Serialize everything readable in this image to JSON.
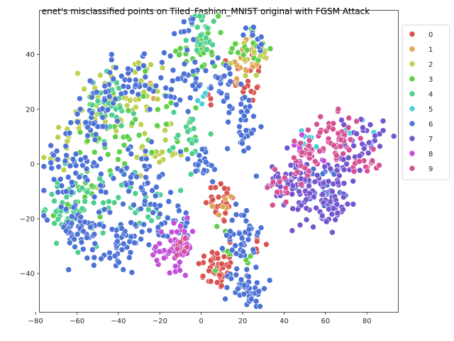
{
  "chart_data": {
    "type": "scatter",
    "title": "enet's misclassified points on Tiled_Fashion_MNIST original with FGSM Attack",
    "xlabel": "",
    "ylabel": "",
    "xlim": [
      -78,
      95
    ],
    "ylim": [
      -54,
      56
    ],
    "xticks": [
      -80,
      -60,
      -40,
      -20,
      0,
      20,
      40,
      60,
      80
    ],
    "yticks": [
      -40,
      -20,
      0,
      20,
      40
    ],
    "grid": false,
    "legend_position": "outside-right",
    "series": [
      {
        "name": "0",
        "color": "#d9534f",
        "clusters": [
          {
            "cx": 8,
            "cy": -38,
            "sx": 5,
            "sy": 4,
            "n": 45
          },
          {
            "cx": 10,
            "cy": -14,
            "sx": 4,
            "sy": 4,
            "n": 25
          },
          {
            "cx": 22,
            "cy": 32,
            "sx": 4,
            "sy": 5,
            "n": 20
          },
          {
            "cx": 26,
            "cy": -30,
            "sx": 3,
            "sy": 3,
            "n": 8
          },
          {
            "cx": 4,
            "cy": 24,
            "sx": 2,
            "sy": 2,
            "n": 4
          }
        ]
      },
      {
        "name": "1",
        "color": "#e0a550",
        "clusters": [
          {
            "cx": 22,
            "cy": 38,
            "sx": 4,
            "sy": 5,
            "n": 25
          },
          {
            "cx": 10,
            "cy": -16,
            "sx": 3,
            "sy": 3,
            "n": 6
          },
          {
            "cx": -25,
            "cy": 28,
            "sx": 4,
            "sy": 3,
            "n": 5
          }
        ]
      },
      {
        "name": "2",
        "color": "#bcd150",
        "clusters": [
          {
            "cx": -35,
            "cy": 25,
            "sx": 10,
            "sy": 8,
            "n": 55
          },
          {
            "cx": -60,
            "cy": 12,
            "sx": 6,
            "sy": 5,
            "n": 20
          },
          {
            "cx": -20,
            "cy": 5,
            "sx": 6,
            "sy": 4,
            "n": 20
          },
          {
            "cx": 24,
            "cy": 40,
            "sx": 4,
            "sy": 4,
            "n": 15
          },
          {
            "cx": -70,
            "cy": 0,
            "sx": 3,
            "sy": 2,
            "n": 6
          }
        ]
      },
      {
        "name": "3",
        "color": "#5fcf4a",
        "clusters": [
          {
            "cx": 0,
            "cy": 42,
            "sx": 6,
            "sy": 6,
            "n": 30
          },
          {
            "cx": 25,
            "cy": 42,
            "sx": 4,
            "sy": 4,
            "n": 15
          },
          {
            "cx": -45,
            "cy": 10,
            "sx": 10,
            "sy": 8,
            "n": 30
          },
          {
            "cx": -15,
            "cy": 20,
            "sx": 8,
            "sy": 8,
            "n": 20
          },
          {
            "cx": 15,
            "cy": -30,
            "sx": 5,
            "sy": 5,
            "n": 15
          },
          {
            "cx": -60,
            "cy": -15,
            "sx": 6,
            "sy": 5,
            "n": 15
          }
        ]
      },
      {
        "name": "4",
        "color": "#4ccf8f",
        "clusters": [
          {
            "cx": -65,
            "cy": -15,
            "sx": 6,
            "sy": 6,
            "n": 45
          },
          {
            "cx": -45,
            "cy": -15,
            "sx": 6,
            "sy": 6,
            "n": 25
          },
          {
            "cx": 2,
            "cy": 48,
            "sx": 4,
            "sy": 4,
            "n": 25
          },
          {
            "cx": -45,
            "cy": 20,
            "sx": 7,
            "sy": 7,
            "n": 30
          },
          {
            "cx": -5,
            "cy": 10,
            "sx": 5,
            "sy": 5,
            "n": 20
          },
          {
            "cx": -25,
            "cy": -15,
            "sx": 5,
            "sy": 4,
            "n": 20
          }
        ]
      },
      {
        "name": "5",
        "color": "#4dd0d8",
        "clusters": [
          {
            "cx": 50,
            "cy": 8,
            "sx": 3,
            "sy": 2,
            "n": 8
          },
          {
            "cx": 75,
            "cy": 10,
            "sx": 4,
            "sy": 3,
            "n": 6
          },
          {
            "cx": 2,
            "cy": 26,
            "sx": 3,
            "sy": 3,
            "n": 5
          }
        ]
      },
      {
        "name": "6",
        "color": "#4c72d6",
        "clusters": [
          {
            "cx": -60,
            "cy": 0,
            "sx": 8,
            "sy": 10,
            "n": 70
          },
          {
            "cx": -40,
            "cy": -30,
            "sx": 6,
            "sy": 5,
            "n": 50
          },
          {
            "cx": -60,
            "cy": -25,
            "sx": 6,
            "sy": 4,
            "n": 40
          },
          {
            "cx": -30,
            "cy": -5,
            "sx": 8,
            "sy": 6,
            "n": 45
          },
          {
            "cx": -35,
            "cy": 28,
            "sx": 8,
            "sy": 5,
            "n": 40
          },
          {
            "cx": -10,
            "cy": 30,
            "sx": 7,
            "sy": 6,
            "n": 30
          },
          {
            "cx": 22,
            "cy": -45,
            "sx": 5,
            "sy": 4,
            "n": 45
          },
          {
            "cx": 20,
            "cy": -25,
            "sx": 4,
            "sy": 6,
            "n": 40
          },
          {
            "cx": 20,
            "cy": 15,
            "sx": 4,
            "sy": 6,
            "n": 35
          },
          {
            "cx": 10,
            "cy": 30,
            "sx": 4,
            "sy": 5,
            "n": 25
          },
          {
            "cx": -15,
            "cy": -22,
            "sx": 6,
            "sy": 5,
            "n": 35
          },
          {
            "cx": 0,
            "cy": 0,
            "sx": 5,
            "sy": 4,
            "n": 20
          },
          {
            "cx": -50,
            "cy": 20,
            "sx": 6,
            "sy": 5,
            "n": 25
          },
          {
            "cx": 60,
            "cy": -8,
            "sx": 6,
            "sy": 4,
            "n": 25
          },
          {
            "cx": 25,
            "cy": 45,
            "sx": 3,
            "sy": 3,
            "n": 10
          },
          {
            "cx": -5,
            "cy": 48,
            "sx": 3,
            "sy": 3,
            "n": 10
          }
        ]
      },
      {
        "name": "7",
        "color": "#7455cf",
        "clusters": [
          {
            "cx": 62,
            "cy": -8,
            "sx": 7,
            "sy": 6,
            "n": 70
          },
          {
            "cx": 45,
            "cy": -5,
            "sx": 6,
            "sy": 5,
            "n": 40
          },
          {
            "cx": 78,
            "cy": 8,
            "sx": 5,
            "sy": 5,
            "n": 35
          },
          {
            "cx": 60,
            "cy": -18,
            "sx": 5,
            "sy": 3,
            "n": 20
          },
          {
            "cx": 40,
            "cy": -8,
            "sx": 4,
            "sy": 3,
            "n": 15
          }
        ]
      },
      {
        "name": "8",
        "color": "#c44dd9",
        "clusters": [
          {
            "cx": -10,
            "cy": -30,
            "sx": 3,
            "sy": 4,
            "n": 40
          },
          {
            "cx": -20,
            "cy": -32,
            "sx": 3,
            "sy": 3,
            "n": 15
          },
          {
            "cx": 50,
            "cy": 5,
            "sx": 4,
            "sy": 3,
            "n": 10
          }
        ]
      },
      {
        "name": "9",
        "color": "#d65195",
        "clusters": [
          {
            "cx": 65,
            "cy": 10,
            "sx": 6,
            "sy": 4,
            "n": 45
          },
          {
            "cx": 50,
            "cy": 2,
            "sx": 4,
            "sy": 4,
            "n": 25
          },
          {
            "cx": 80,
            "cy": 0,
            "sx": 4,
            "sy": 3,
            "n": 15
          },
          {
            "cx": 40,
            "cy": -8,
            "sx": 4,
            "sy": 4,
            "n": 15
          },
          {
            "cx": -10,
            "cy": -28,
            "sx": 3,
            "sy": 3,
            "n": 10
          }
        ]
      }
    ]
  }
}
